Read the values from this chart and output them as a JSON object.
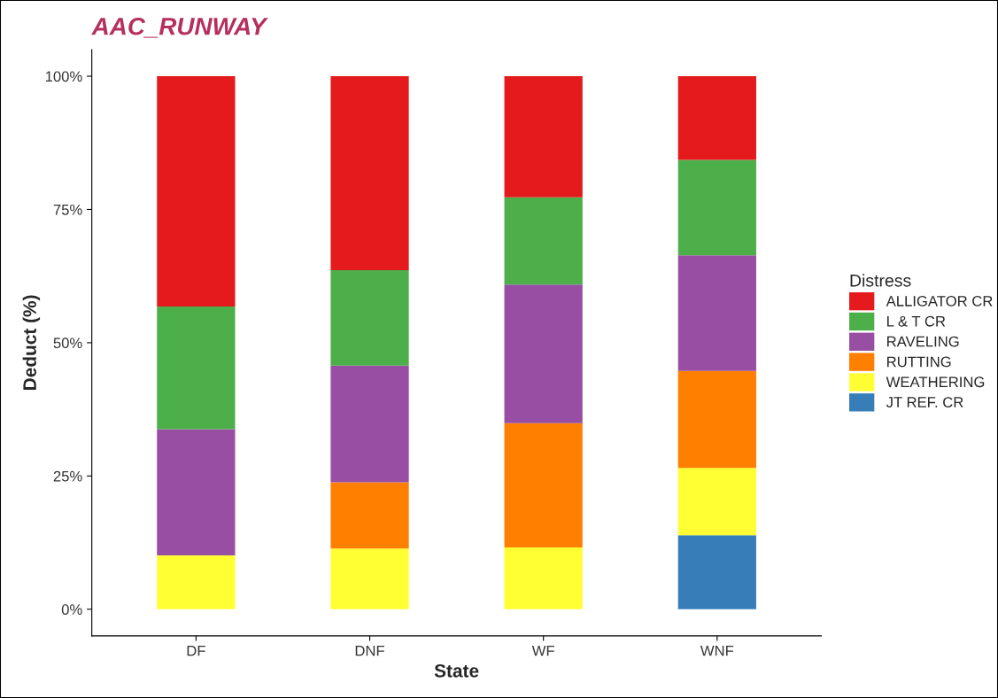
{
  "chart_data": {
    "type": "bar",
    "title": "AAC_RUNWAY",
    "xlabel": "State",
    "ylabel": "Deduct (%)",
    "legend_title": "Distress",
    "categories": [
      "DF",
      "DNF",
      "WF",
      "WNF"
    ],
    "stacked": true,
    "series": [
      {
        "name": "JT REF. CR",
        "color": "#377eb8",
        "values": [
          null,
          null,
          null,
          13.9
        ]
      },
      {
        "name": "WEATHERING",
        "color": "#ffff33",
        "values": [
          10.1,
          11.4,
          11.6,
          12.6
        ]
      },
      {
        "name": "RUTTING",
        "color": "#ff7f00",
        "values": [
          null,
          12.4,
          23.3,
          18.2
        ]
      },
      {
        "name": "RAVELING",
        "color": "#984ea3",
        "values": [
          23.7,
          21.9,
          26.0,
          21.7
        ]
      },
      {
        "name": "L & T CR",
        "color": "#4daf4a",
        "values": [
          23.0,
          17.9,
          16.4,
          17.9
        ]
      },
      {
        "name": "ALLIGATOR CR",
        "color": "#e41a1c",
        "values": [
          43.2,
          36.4,
          22.7,
          15.7
        ]
      }
    ],
    "ylim": [
      -5,
      105
    ],
    "yticks": [
      {
        "value": 0,
        "label": "0%"
      },
      {
        "value": 25,
        "label": "25%"
      },
      {
        "value": 50,
        "label": "50%"
      },
      {
        "value": 75,
        "label": "75%"
      },
      {
        "value": 100,
        "label": "100%"
      }
    ],
    "grid": false,
    "legend": "right"
  }
}
